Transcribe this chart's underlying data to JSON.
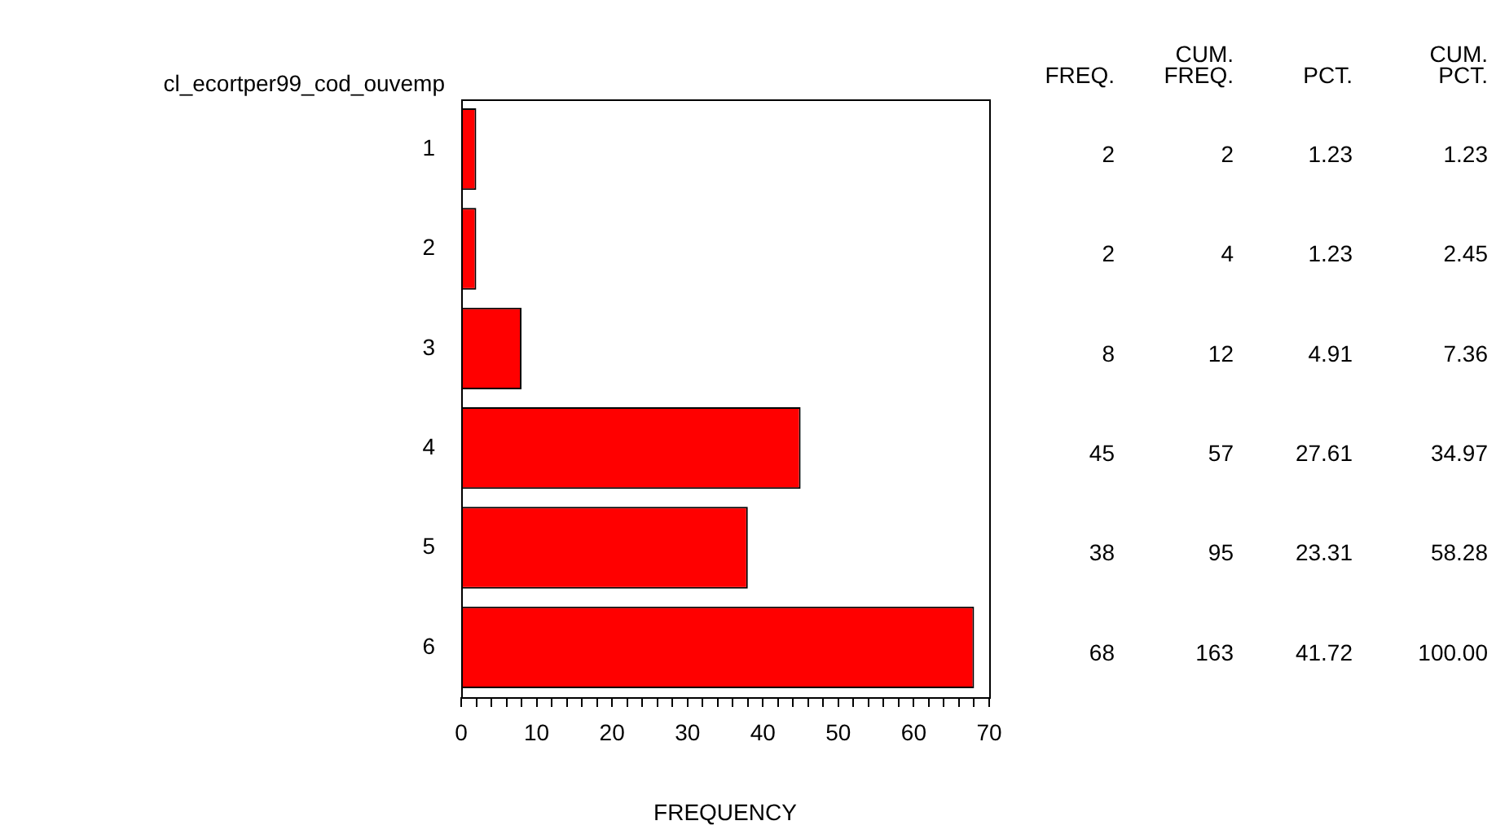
{
  "chart_data": {
    "type": "bar",
    "orientation": "horizontal",
    "xlabel": "FREQUENCY",
    "ylabel": "cl_ecortper99_cod_ouvemp",
    "categories": [
      "1",
      "2",
      "3",
      "4",
      "5",
      "6"
    ],
    "values": [
      2,
      2,
      8,
      45,
      38,
      68
    ],
    "color": "#ff0000",
    "data_labels": true,
    "xlim": [
      0,
      70
    ],
    "xticks": [
      0,
      {
        "value": 2,
        "label": null
      },
      {
        "value": 4,
        "label": null
      },
      {
        "value": 6,
        "label": null
      },
      {
        "value": 8,
        "label": null
      },
      10,
      {
        "value": 12,
        "label": null
      },
      {
        "value": 14,
        "label": null
      },
      {
        "value": 16,
        "label": null
      },
      {
        "value": 18,
        "label": null
      },
      20,
      {
        "value": 22,
        "label": null
      },
      {
        "value": 24,
        "label": null
      },
      {
        "value": 26,
        "label": null
      },
      {
        "value": 28,
        "label": null
      },
      30,
      {
        "value": 32,
        "label": null
      },
      {
        "value": 34,
        "label": null
      },
      {
        "value": 36,
        "label": null
      },
      {
        "value": 38,
        "label": null
      },
      40,
      {
        "value": 42,
        "label": null
      },
      {
        "value": 44,
        "label": null
      },
      {
        "value": 46,
        "label": null
      },
      {
        "value": 48,
        "label": null
      },
      50,
      {
        "value": 52,
        "label": null
      },
      {
        "value": 54,
        "label": null
      },
      {
        "value": 56,
        "label": null
      },
      {
        "value": 58,
        "label": null
      },
      60,
      {
        "value": 62,
        "label": null
      },
      {
        "value": 64,
        "label": null
      },
      {
        "value": 66,
        "label": null
      },
      {
        "value": 68,
        "label": null
      },
      70
    ],
    "grid": false,
    "legend": false,
    "annotations": [
      "FREQ.",
      "CUM. FREQ.",
      "PCT.",
      "CUM. PCT.",
      "2",
      "1.23",
      "1.23",
      "4",
      "1.23",
      "2.45",
      "12",
      "4.91",
      "7.36",
      "57",
      "27.61",
      "34.97",
      "95",
      "23.31",
      "58.28",
      "163",
      "41.72",
      "100.00"
    ]
  }
}
